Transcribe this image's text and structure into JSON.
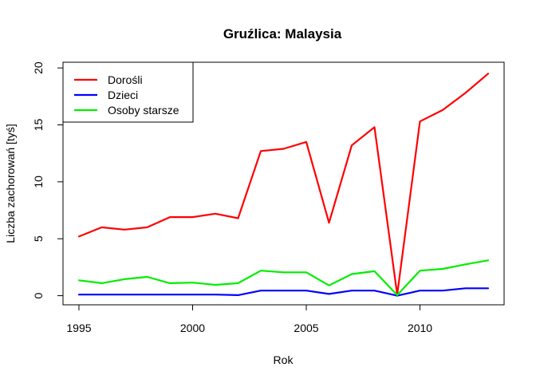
{
  "chart_data": {
    "type": "line",
    "title": "Gruźlica: Malaysia",
    "xlabel": "Rok",
    "ylabel": "Liczba zachorowań [tyś]",
    "xlim": [
      1994.3,
      2013.7
    ],
    "ylim": [
      -0.8,
      20.5
    ],
    "x_ticks": [
      1995,
      2000,
      2005,
      2010
    ],
    "y_ticks": [
      0,
      5,
      10,
      15,
      20
    ],
    "grid": false,
    "legend_position": "top-left",
    "x": [
      1995,
      1996,
      1997,
      1998,
      1999,
      2000,
      2001,
      2002,
      2003,
      2004,
      2005,
      2006,
      2007,
      2008,
      2009,
      2010,
      2011,
      2012,
      2013
    ],
    "series": [
      {
        "name": "Dorośli",
        "color": "#ff0000",
        "values": [
          5.2,
          6.0,
          5.8,
          6.0,
          6.9,
          6.9,
          7.2,
          6.8,
          12.7,
          12.9,
          13.5,
          6.4,
          13.2,
          14.8,
          0.1,
          15.3,
          16.3,
          17.8,
          19.5
        ]
      },
      {
        "name": "Dzieci",
        "color": "#0000ff",
        "values": [
          0.1,
          0.1,
          0.1,
          0.1,
          0.1,
          0.1,
          0.1,
          0.05,
          0.45,
          0.45,
          0.45,
          0.15,
          0.45,
          0.45,
          0.0,
          0.45,
          0.45,
          0.65,
          0.65
        ]
      },
      {
        "name": "Osoby starsze",
        "color": "#00ee00",
        "values": [
          1.35,
          1.1,
          1.45,
          1.65,
          1.1,
          1.15,
          0.95,
          1.1,
          2.2,
          2.05,
          2.05,
          0.9,
          1.9,
          2.15,
          0.05,
          2.2,
          2.35,
          2.75,
          3.1
        ]
      }
    ]
  }
}
